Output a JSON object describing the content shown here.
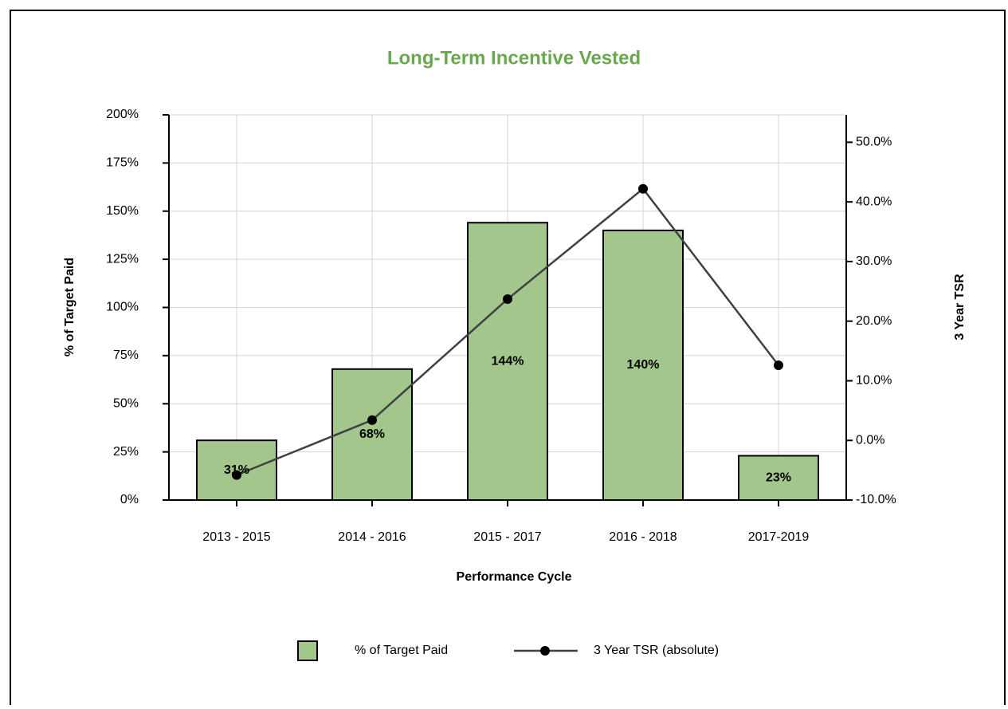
{
  "chart_data": {
    "type": "bar",
    "title": "Long-Term Incentive Vested",
    "x_label": "Performance Cycle",
    "y_label": "% of Target Paid",
    "y2_label": "3 Year TSR",
    "categories": [
      "2013 - 2015",
      "2014 - 2016",
      "2015 - 2017",
      "2016 - 2018",
      "2017-2019"
    ],
    "series": [
      {
        "name": "% of Target Paid",
        "type": "bar",
        "color": "#a3c68c",
        "values": [
          31,
          68,
          144,
          140,
          23
        ],
        "value_labels": [
          "31%",
          "68%",
          "144%",
          "140%",
          "23%"
        ]
      },
      {
        "name": "3 Year TSR (absolute)",
        "type": "line",
        "axis": "y2",
        "color": "#404040",
        "values": [
          -5.8,
          3.4,
          23.7,
          42.2,
          12.6
        ]
      }
    ],
    "ylim": [
      0,
      200
    ],
    "yticks": [
      {
        "value": 0,
        "label": "0%"
      },
      {
        "value": 25,
        "label": "25%"
      },
      {
        "value": 50,
        "label": "50%"
      },
      {
        "value": 75,
        "label": "75%"
      },
      {
        "value": 100,
        "label": "100%"
      },
      {
        "value": 125,
        "label": "125%"
      },
      {
        "value": 150,
        "label": "150%"
      },
      {
        "value": 175,
        "label": "175%"
      },
      {
        "value": 200,
        "label": "200%"
      }
    ],
    "y2lim": [
      -10,
      54.6
    ],
    "y2ticks": [
      {
        "value": -10,
        "label": "-10.0%"
      },
      {
        "value": 0,
        "label": "0.0%"
      },
      {
        "value": 10,
        "label": "10.0%"
      },
      {
        "value": 20,
        "label": "20.0%"
      },
      {
        "value": 30,
        "label": "30.0%"
      },
      {
        "value": 40,
        "label": "40.0%"
      },
      {
        "value": 50,
        "label": "50.0%"
      }
    ],
    "grid": true,
    "legend": "bottom"
  }
}
